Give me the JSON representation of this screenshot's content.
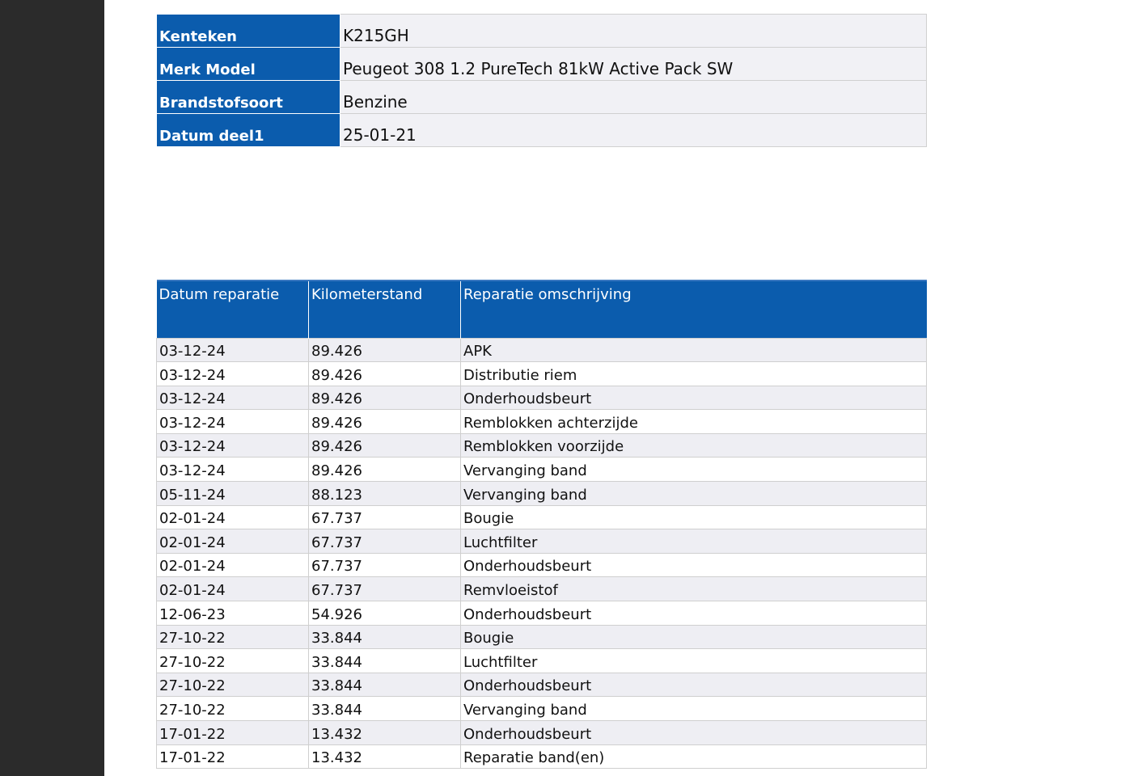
{
  "vehicle": {
    "rows": [
      {
        "label": "Kenteken",
        "value": "K215GH"
      },
      {
        "label": "Merk Model",
        "value": "Peugeot 308 1.2 PureTech 81kW Active Pack SW"
      },
      {
        "label": "Brandstofsoort",
        "value": "Benzine"
      },
      {
        "label": "Datum deel1",
        "value": "25-01-21"
      }
    ]
  },
  "repairs": {
    "headers": [
      "Datum reparatie",
      "Kilometerstand",
      "Reparatie omschrijving"
    ],
    "rows": [
      {
        "date": "03-12-24",
        "km": "89.426",
        "desc": "APK"
      },
      {
        "date": "03-12-24",
        "km": "89.426",
        "desc": "Distributie riem"
      },
      {
        "date": "03-12-24",
        "km": "89.426",
        "desc": "Onderhoudsbeurt"
      },
      {
        "date": "03-12-24",
        "km": "89.426",
        "desc": "Remblokken achterzijde"
      },
      {
        "date": "03-12-24",
        "km": "89.426",
        "desc": "Remblokken voorzijde"
      },
      {
        "date": "03-12-24",
        "km": "89.426",
        "desc": "Vervanging band"
      },
      {
        "date": "05-11-24",
        "km": "88.123",
        "desc": "Vervanging band"
      },
      {
        "date": "02-01-24",
        "km": "67.737",
        "desc": "Bougie"
      },
      {
        "date": "02-01-24",
        "km": "67.737",
        "desc": "Luchtfilter"
      },
      {
        "date": "02-01-24",
        "km": "67.737",
        "desc": "Onderhoudsbeurt"
      },
      {
        "date": "02-01-24",
        "km": "67.737",
        "desc": "Remvloeistof"
      },
      {
        "date": "12-06-23",
        "km": "54.926",
        "desc": "Onderhoudsbeurt"
      },
      {
        "date": "27-10-22",
        "km": "33.844",
        "desc": "Bougie"
      },
      {
        "date": "27-10-22",
        "km": "33.844",
        "desc": "Luchtfilter"
      },
      {
        "date": "27-10-22",
        "km": "33.844",
        "desc": "Onderhoudsbeurt"
      },
      {
        "date": "27-10-22",
        "km": "33.844",
        "desc": "Vervanging band"
      },
      {
        "date": "17-01-22",
        "km": "13.432",
        "desc": "Onderhoudsbeurt"
      },
      {
        "date": "17-01-22",
        "km": "13.432",
        "desc": "Reparatie band(en)"
      }
    ]
  },
  "colors": {
    "header_blue": "#0b5cad",
    "row_shade": "#eeeef3",
    "side_panel": "#2b2b2b"
  }
}
